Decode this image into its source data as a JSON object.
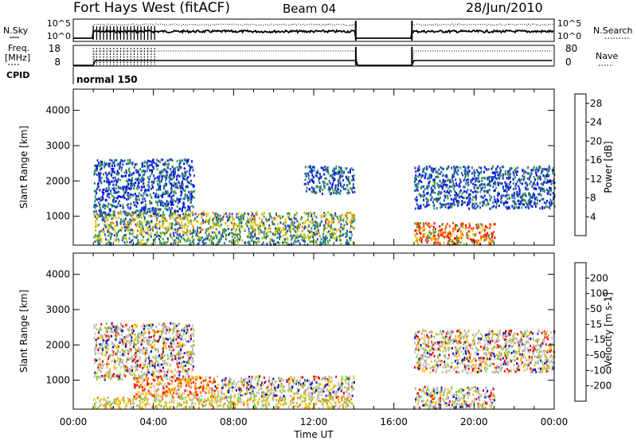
{
  "header": {
    "station": "Fort Hays West (fitACF)",
    "beam": "Beam 04",
    "date": "28/Jun/2010"
  },
  "status_labels": {
    "nsky": "N.Sky",
    "freq": "Freq.",
    "freq_unit": "[MHz]",
    "cpid": "CPID",
    "nsearch": "N.Search",
    "nave": "Nave",
    "cpid_value": "normal 150"
  },
  "status_ticks": {
    "nsky_left": [
      "10^5",
      "10^0"
    ],
    "nsearch_right": [
      "10^5",
      "10^0"
    ],
    "freq_left": [
      "18",
      "8"
    ],
    "nave_right": [
      "80",
      "0"
    ]
  },
  "chart_data": [
    {
      "type": "heatmap",
      "name": "power",
      "ylabel": "Slant Range [km]",
      "xlim_hours": [
        0,
        24
      ],
      "ylim_km": [
        180,
        4600
      ],
      "yticks": [
        1000,
        2000,
        3000,
        4000
      ],
      "colorbar": {
        "label": "Power [dB]",
        "ticks": [
          4,
          8,
          12,
          16,
          20,
          24,
          28
        ],
        "range": [
          0,
          30
        ],
        "colors": [
          "#0000ff",
          "#2040c0",
          "#208080",
          "#40a040",
          "#c0c000",
          "#ffc000",
          "#ff8000",
          "#ff0000"
        ]
      },
      "scatter_regions": [
        {
          "t": [
            1.0,
            6.0
          ],
          "r": [
            1000,
            2600
          ],
          "dominant": "blue"
        },
        {
          "t": [
            1.0,
            14.0
          ],
          "r": [
            500,
            1100
          ],
          "dominant": "green-yellow"
        },
        {
          "t": [
            1.0,
            14.0
          ],
          "r": [
            180,
            500
          ],
          "dominant": "green-blue"
        },
        {
          "t": [
            11.5,
            14.0
          ],
          "r": [
            1600,
            2400
          ],
          "dominant": "blue"
        },
        {
          "t": [
            17.0,
            21.0
          ],
          "r": [
            180,
            800
          ],
          "dominant": "red-orange"
        },
        {
          "t": [
            17.0,
            24.0
          ],
          "r": [
            1200,
            2400
          ],
          "dominant": "blue"
        }
      ]
    },
    {
      "type": "heatmap",
      "name": "velocity",
      "ylabel": "Slant Range [km]",
      "xlabel": "Time UT",
      "xlim_hours": [
        0,
        24
      ],
      "ylim_km": [
        180,
        4600
      ],
      "xticks": [
        "00:00",
        "04:00",
        "08:00",
        "12:00",
        "16:00",
        "20:00",
        "00:00"
      ],
      "yticks": [
        1000,
        2000,
        3000,
        4000
      ],
      "colorbar": {
        "label": "Velocity [m s-1]",
        "ticks": [
          200,
          100,
          50,
          15,
          -15,
          -50,
          -100,
          -200
        ],
        "colors": [
          "#1010c0",
          "#2050d0",
          "#20a050",
          "#80d040",
          "#c0c0c0",
          "#ffc000",
          "#ff8000",
          "#ff4000",
          "#ff0000"
        ]
      },
      "scatter_regions": [
        {
          "t": [
            1.0,
            6.0
          ],
          "r": [
            1000,
            2600
          ],
          "dominant": "grey"
        },
        {
          "t": [
            3.0,
            7.0
          ],
          "r": [
            500,
            1100
          ],
          "dominant": "orange-red"
        },
        {
          "t": [
            7.0,
            14.0
          ],
          "r": [
            500,
            1100
          ],
          "dominant": "grey"
        },
        {
          "t": [
            1.0,
            14.0
          ],
          "r": [
            180,
            500
          ],
          "dominant": "grey-orange"
        },
        {
          "t": [
            17.0,
            21.0
          ],
          "r": [
            180,
            800
          ],
          "dominant": "grey"
        },
        {
          "t": [
            17.0,
            24.0
          ],
          "r": [
            1200,
            2400
          ],
          "dominant": "grey"
        }
      ]
    }
  ]
}
